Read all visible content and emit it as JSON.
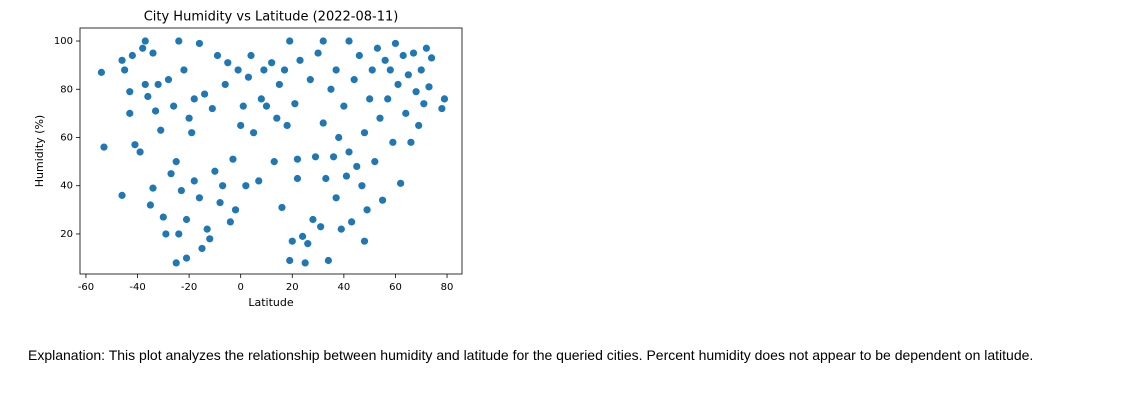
{
  "chart_data": {
    "type": "scatter",
    "title": "City Humidity vs Latitude (2022-08-11)",
    "x_label": "Latitude",
    "y_label": "Humidity (%)",
    "color": "#1f77b4",
    "xlim": [
      -62.3,
      85.8
    ],
    "ylim": [
      3.4,
      105.4
    ],
    "xticks": [
      -60,
      -40,
      -20,
      0,
      20,
      40,
      60,
      80
    ],
    "yticks": [
      20,
      40,
      60,
      80,
      100
    ],
    "x": [
      -54,
      -53,
      -46,
      -46,
      -45,
      -43,
      -43,
      -42,
      -41,
      -39,
      -38,
      -37,
      -37,
      -36,
      -35,
      -34,
      -34,
      -33,
      -32,
      -31,
      -30,
      -29,
      -28,
      -27,
      -26,
      -25,
      -25,
      -24,
      -24,
      -23,
      -22,
      -21,
      -21,
      -20,
      -19,
      -18,
      -18,
      -16,
      -16,
      -15,
      -14,
      -13,
      -12,
      -11,
      -10,
      -9,
      -8,
      -7,
      -6,
      -5,
      -4,
      -3,
      -2,
      -1,
      0,
      1,
      2,
      3,
      4,
      5,
      7,
      8,
      9,
      10,
      12,
      13,
      14,
      15,
      16,
      17,
      18,
      19,
      19,
      20,
      21,
      22,
      22,
      23,
      24,
      25,
      26,
      27,
      28,
      29,
      30,
      31,
      32,
      32,
      33,
      34,
      35,
      36,
      37,
      37,
      38,
      39,
      40,
      41,
      42,
      42,
      43,
      44,
      45,
      46,
      47,
      48,
      48,
      49,
      50,
      51,
      52,
      53,
      54,
      55,
      56,
      57,
      58,
      59,
      60,
      61,
      62,
      63,
      64,
      65,
      66,
      67,
      68,
      69,
      70,
      71,
      72,
      73,
      74,
      78,
      79
    ],
    "values": [
      87,
      56,
      36,
      92,
      88,
      79,
      70,
      94,
      57,
      54,
      97,
      100,
      82,
      77,
      32,
      39,
      95,
      71,
      82,
      63,
      27,
      20,
      84,
      45,
      73,
      8,
      50,
      100,
      20,
      38,
      88,
      26,
      10,
      68,
      62,
      42,
      76,
      99,
      35,
      14,
      78,
      22,
      18,
      72,
      46,
      94,
      33,
      40,
      82,
      91,
      25,
      51,
      30,
      88,
      65,
      73,
      40,
      85,
      94,
      62,
      42,
      76,
      88,
      73,
      91,
      50,
      68,
      82,
      31,
      88,
      65,
      9,
      100,
      17,
      74,
      43,
      51,
      92,
      19,
      8,
      16,
      84,
      26,
      52,
      95,
      23,
      66,
      100,
      43,
      9,
      80,
      52,
      35,
      88,
      60,
      22,
      73,
      44,
      54,
      100,
      25,
      84,
      48,
      94,
      40,
      17,
      62,
      30,
      76,
      88,
      50,
      97,
      68,
      34,
      92,
      76,
      88,
      58,
      99,
      82,
      41,
      94,
      70,
      86,
      58,
      95,
      79,
      65,
      88,
      74,
      97,
      81,
      93,
      72,
      76
    ]
  },
  "explanation": "Explanation: This plot analyzes the relationship between humidity and latitude for the queried cities. Percent humidity does not appear to be dependent on latitude."
}
